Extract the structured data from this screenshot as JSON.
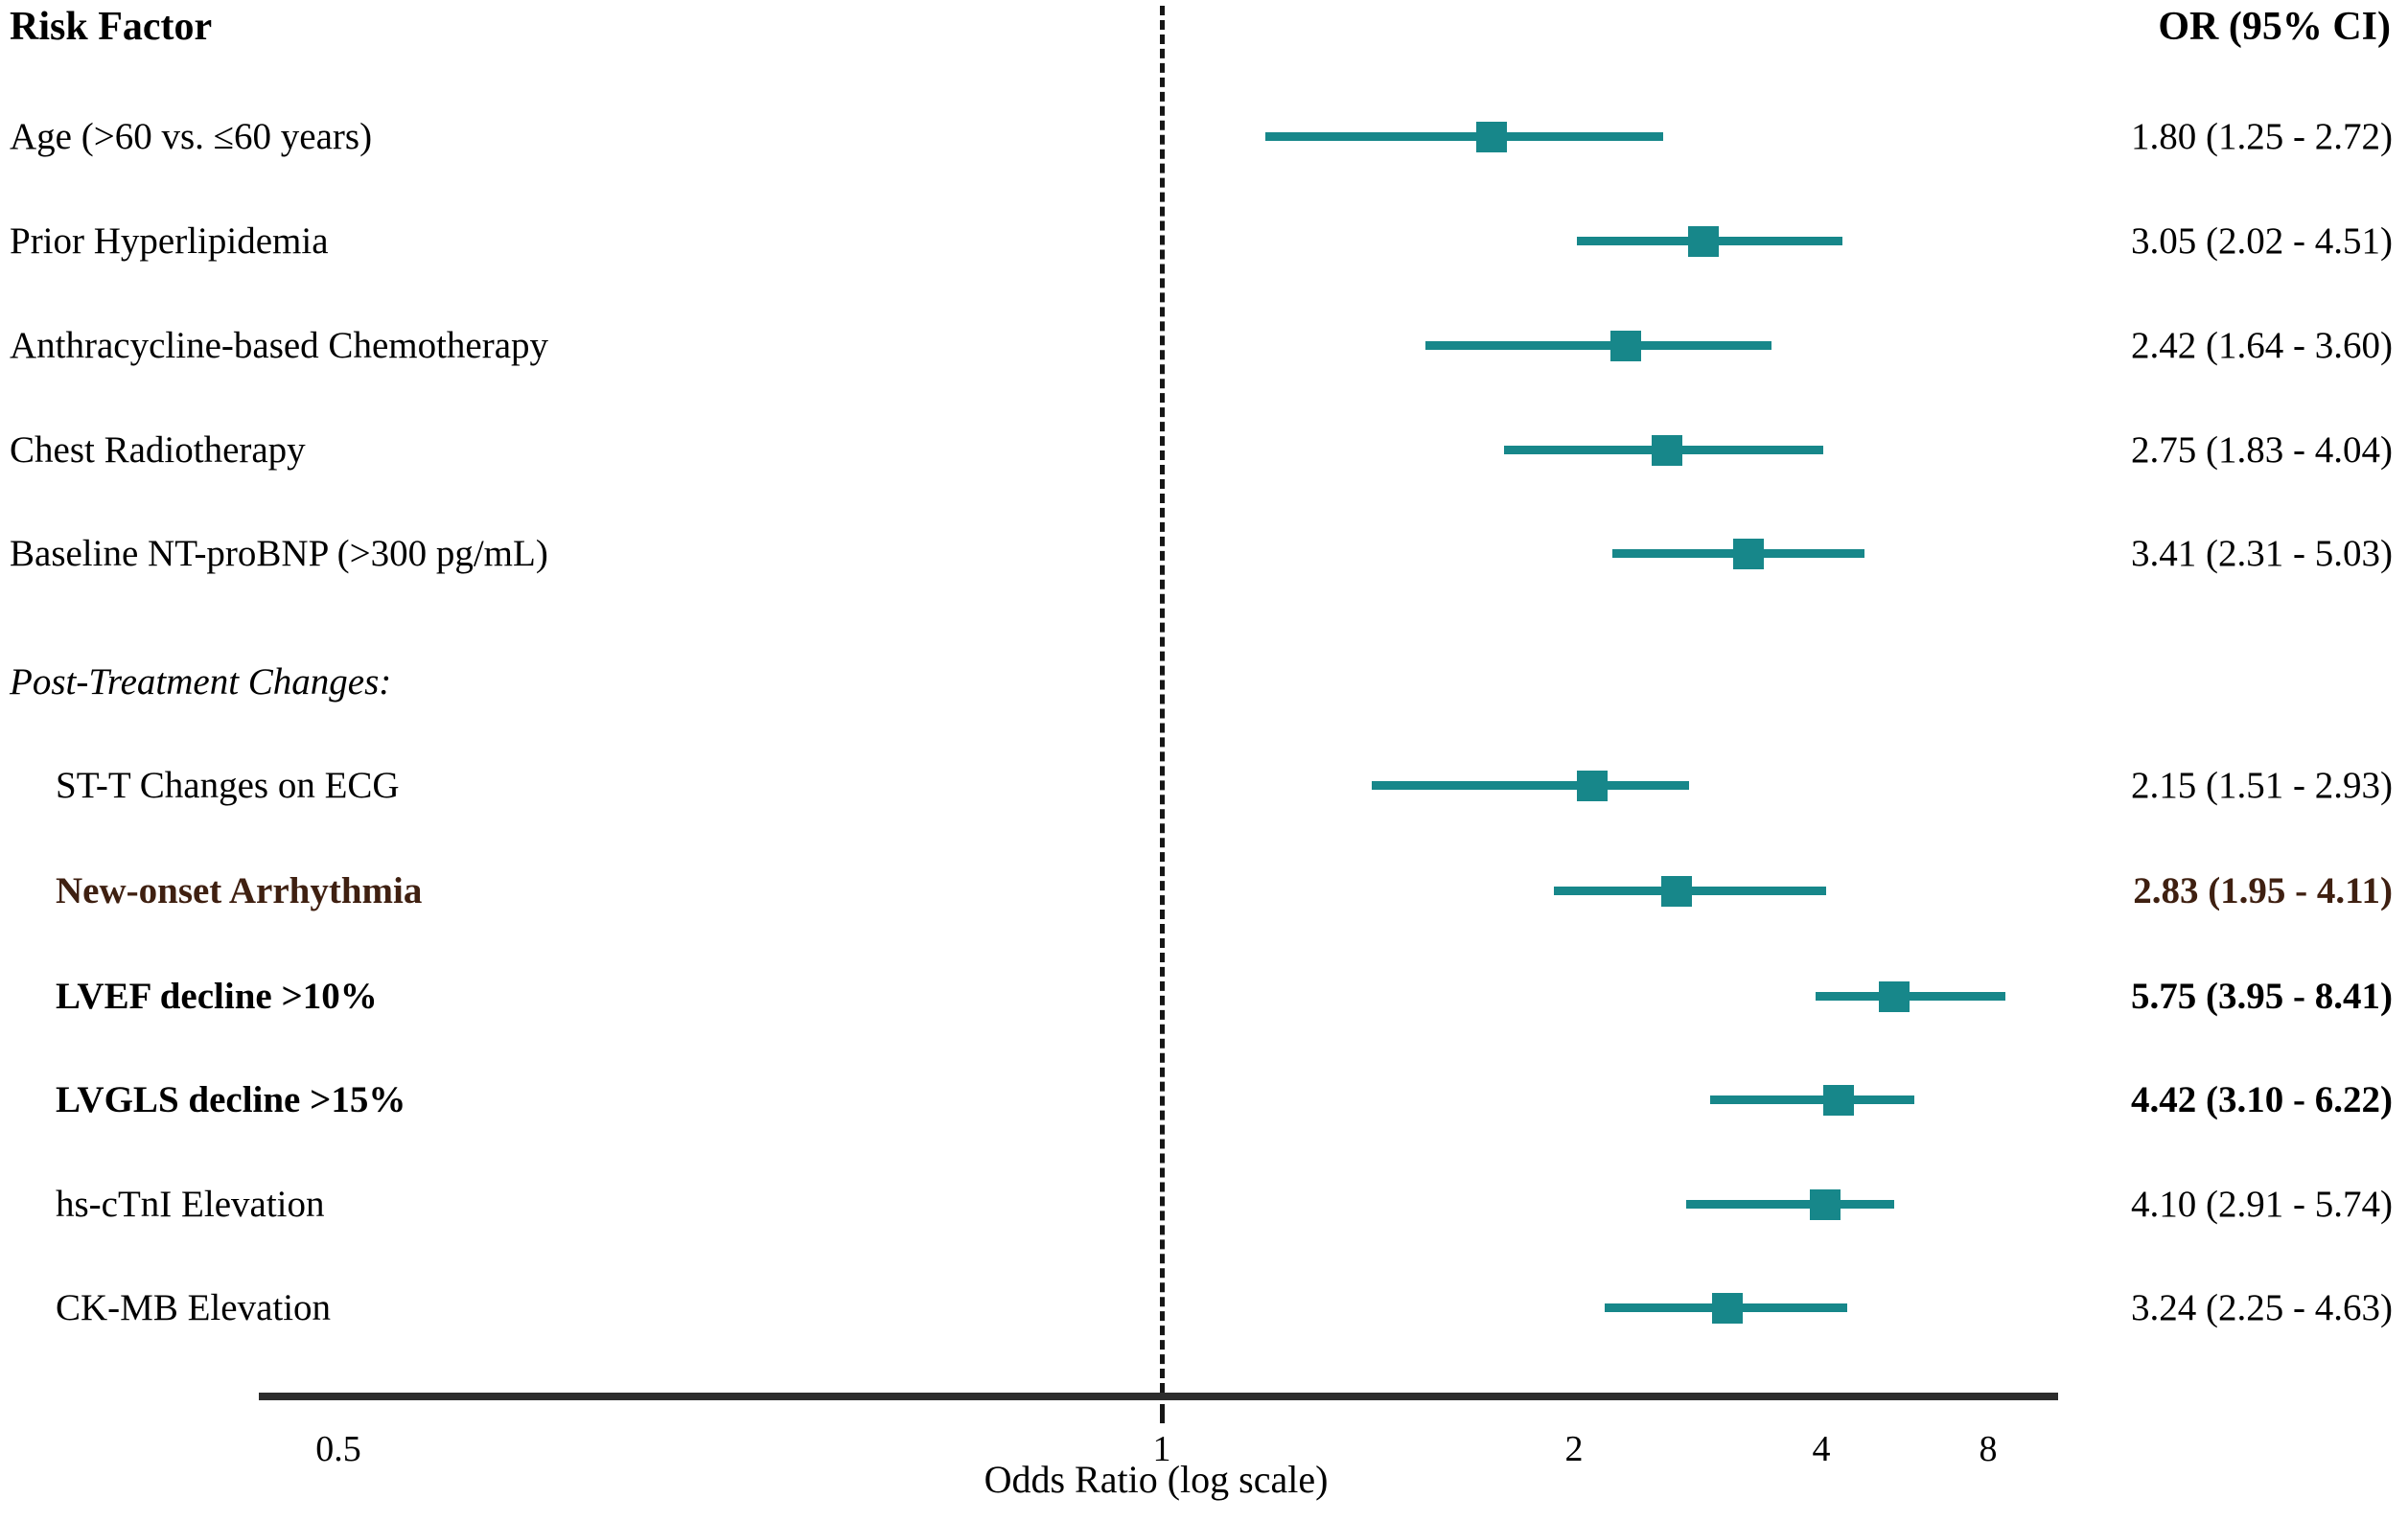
{
  "header": {
    "risk_factor": "Risk Factor",
    "or_ci": "OR (95% CI)"
  },
  "axis": {
    "title": "Odds Ratio (log scale)",
    "ticks": [
      {
        "label": "0.5",
        "value": 0.5
      },
      {
        "label": "1",
        "value": 1
      },
      {
        "label": "2",
        "value": 2
      },
      {
        "label": "4",
        "value": 4
      },
      {
        "label": "8",
        "value": 8
      }
    ],
    "reference_value": 1,
    "range": [
      0.5,
      8.6
    ]
  },
  "colors": {
    "marker_teal": "#17878A",
    "highlight_maroon": "#3F2011",
    "axis_gray": "#2d2d2d"
  },
  "chart_data": {
    "type": "forest",
    "title": "",
    "xlabel": "Odds Ratio (log scale)",
    "reference_line": 1,
    "rows": [
      {
        "type": "item",
        "label": "Age (>60 vs. ≤60 years)",
        "or": 1.8,
        "ci_low": 1.25,
        "ci_high": 2.72,
        "or_text": "1.80 (1.25 - 2.72)",
        "bold": false,
        "maroon": false,
        "indent": false
      },
      {
        "type": "item",
        "label": "Prior Hyperlipidemia",
        "or": 3.05,
        "ci_low": 2.02,
        "ci_high": 4.51,
        "or_text": "3.05 (2.02 - 4.51)",
        "bold": false,
        "maroon": false,
        "indent": false
      },
      {
        "type": "item",
        "label": "Anthracycline-based Chemotherapy",
        "or": 2.42,
        "ci_low": 1.64,
        "ci_high": 3.6,
        "or_text": "2.42 (1.64 - 3.60)",
        "bold": false,
        "maroon": false,
        "indent": false
      },
      {
        "type": "item",
        "label": "Chest Radiotherapy",
        "or": 2.75,
        "ci_low": 1.83,
        "ci_high": 4.04,
        "or_text": "2.75 (1.83 - 4.04)",
        "bold": false,
        "maroon": false,
        "indent": false
      },
      {
        "type": "item",
        "label": "Baseline NT-proBNP (>300 pg/mL)",
        "or": 3.41,
        "ci_low": 2.31,
        "ci_high": 5.03,
        "or_text": "3.41 (2.31 - 5.03)",
        "bold": false,
        "maroon": false,
        "indent": false
      },
      {
        "type": "section",
        "label": "Post-Treatment Changes:"
      },
      {
        "type": "item",
        "label": "ST-T Changes on ECG",
        "or": 2.15,
        "ci_low": 1.51,
        "ci_high": 2.93,
        "or_text": "2.15 (1.51 - 2.93)",
        "bold": false,
        "maroon": false,
        "indent": true
      },
      {
        "type": "item",
        "label": "New-onset Arrhythmia",
        "or": 2.83,
        "ci_low": 1.95,
        "ci_high": 4.11,
        "or_text": "2.83 (1.95 - 4.11)",
        "bold": true,
        "maroon": true,
        "indent": true
      },
      {
        "type": "item",
        "label": "LVEF decline >10%",
        "or": 5.75,
        "ci_low": 3.95,
        "ci_high": 8.41,
        "or_text": "5.75 (3.95 - 8.41)",
        "bold": true,
        "maroon": false,
        "indent": true
      },
      {
        "type": "item",
        "label": "LVGLS decline >15%",
        "or": 4.42,
        "ci_low": 3.1,
        "ci_high": 6.22,
        "or_text": "4.42 (3.10 - 6.22)",
        "bold": true,
        "maroon": false,
        "indent": true
      },
      {
        "type": "item",
        "label": "hs-cTnI Elevation",
        "or": 4.1,
        "ci_low": 2.91,
        "ci_high": 5.74,
        "or_text": "4.10 (2.91 - 5.74)",
        "bold": false,
        "maroon": false,
        "indent": true
      },
      {
        "type": "item",
        "label": "CK-MB Elevation",
        "or": 3.24,
        "ci_low": 2.25,
        "ci_high": 4.63,
        "or_text": "3.24 (2.25 - 4.63)",
        "bold": false,
        "maroon": false,
        "indent": true
      }
    ]
  }
}
